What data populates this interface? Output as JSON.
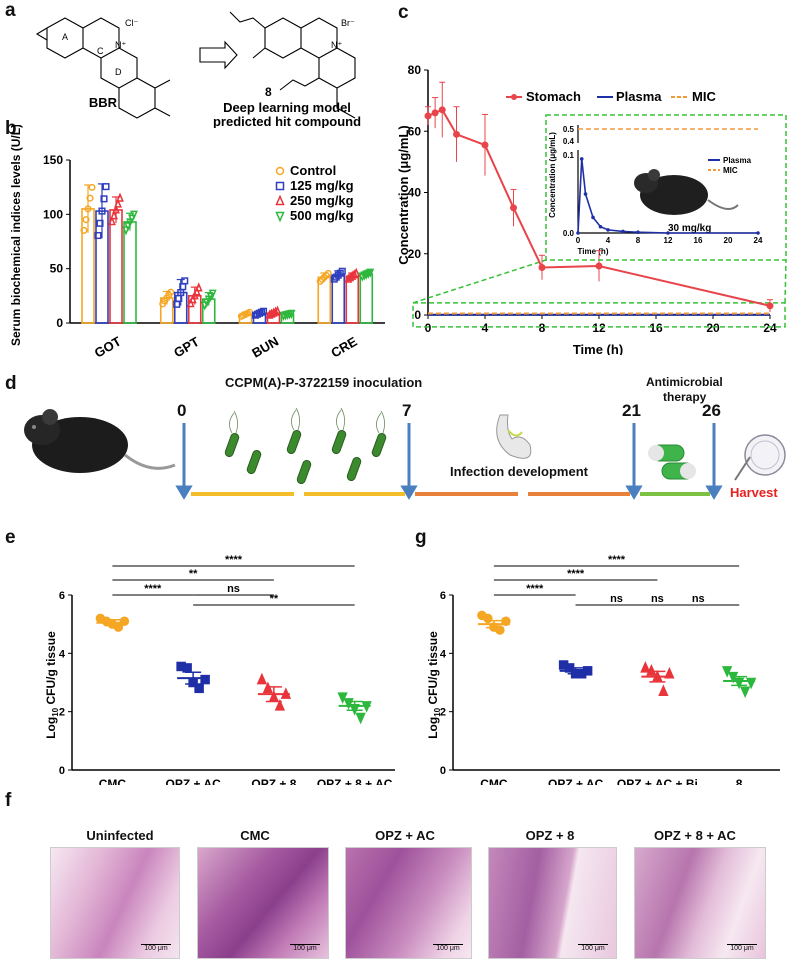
{
  "panel_letters": {
    "a": "a",
    "b": "b",
    "c": "c",
    "d": "d",
    "e": "e",
    "f": "f",
    "g": "g"
  },
  "panel_a": {
    "ring_labels": [
      "A",
      "C",
      "D"
    ],
    "counterion_bbr": "Cl⁻",
    "counterion_hit": "Br⁻",
    "nplus": "N⁺",
    "compound_number": "8",
    "bbr_label": "BBR",
    "hit_label_line1": "Deep learning model",
    "hit_label_line2": "predicted hit compound"
  },
  "panel_b": {
    "ylabel": "Serum biochemical indices levels (U/L)",
    "legend": [
      "Control",
      "125 mg/kg",
      "250 mg/kg",
      "500 mg/kg"
    ],
    "colors": [
      "#F5A623",
      "#2F3FBF",
      "#E8343A",
      "#2DB83D"
    ]
  },
  "panel_c": {
    "legend": [
      "Stomach",
      "Plasma",
      "MIC"
    ],
    "inset_legend": [
      "Plasma",
      "MIC"
    ],
    "inset_dose": "30 mg/kg",
    "inset_xlabel": "Time (h)",
    "inset_ylabel": "Concentration (μg/mL)"
  },
  "panel_d": {
    "inoculation": "CCPM(A)-P-3722159 inoculation",
    "days": [
      "0",
      "7",
      "21",
      "26"
    ],
    "infection": "Infection development",
    "therapy_line1": "Antimicrobial",
    "therapy_line2": "therapy",
    "harvest": "Harvest"
  },
  "panel_f": {
    "titles": [
      "Uninfected",
      "CMC",
      "OPZ + AC",
      "OPZ + 8",
      "OPZ + 8 + AC"
    ],
    "scale_label": "100 μm"
  },
  "chart_data": [
    {
      "id": "b",
      "type": "bar",
      "title": "",
      "ylabel": "Serum biochemical indices levels (U/L)",
      "xlabel": "",
      "categories": [
        "GOT",
        "GPT",
        "BUN",
        "CRE"
      ],
      "ylim": [
        0,
        150
      ],
      "yticks": [
        0,
        50,
        100,
        150
      ],
      "series": [
        {
          "name": "Control",
          "values": [
            105,
            23,
            8,
            42
          ],
          "err": [
            22,
            6,
            2,
            4
          ]
        },
        {
          "name": "125 mg/kg",
          "values": [
            103,
            28,
            9,
            44
          ],
          "err": [
            25,
            12,
            2,
            4
          ]
        },
        {
          "name": "250 mg/kg",
          "values": [
            104,
            25,
            9,
            43
          ],
          "err": [
            12,
            8,
            2,
            3
          ]
        },
        {
          "name": "500 mg/kg",
          "values": [
            93,
            22,
            8,
            45
          ],
          "err": [
            8,
            6,
            1,
            2
          ]
        }
      ]
    },
    {
      "id": "c",
      "type": "line",
      "title": "",
      "xlabel": "Time (h)",
      "ylabel": "Concentration (μg/mL)",
      "xlim": [
        0,
        24
      ],
      "ylim": [
        0,
        80
      ],
      "xticks": [
        0,
        4,
        8,
        12,
        16,
        20,
        24
      ],
      "yticks": [
        0,
        20,
        40,
        60,
        80
      ],
      "series": [
        {
          "name": "Stomach",
          "x": [
            0,
            0.5,
            1,
            2,
            4,
            6,
            8,
            12,
            24
          ],
          "y": [
            65,
            66,
            67,
            59,
            55.5,
            35,
            15.5,
            16,
            3
          ],
          "err": [
            3,
            5,
            9,
            9,
            10,
            6,
            4,
            5,
            2
          ]
        },
        {
          "name": "Plasma",
          "x": [
            0,
            0.5,
            1,
            2,
            4,
            6,
            8,
            12,
            24
          ],
          "y": [
            0.1,
            0.1,
            0.1,
            0.1,
            0.1,
            0.1,
            0.1,
            0.1,
            0.1
          ]
        },
        {
          "name": "MIC",
          "x": [
            0,
            24
          ],
          "y": [
            0.5,
            0.5
          ]
        }
      ],
      "inset": {
        "xlim": [
          0,
          24
        ],
        "xticks": [
          0,
          4,
          8,
          12,
          16,
          20,
          24
        ],
        "yticks_labels": [
          "0.0",
          "0.1",
          "0.4",
          "0.5"
        ],
        "series": [
          {
            "name": "Plasma",
            "x": [
              0,
              0.5,
              1,
              2,
              3,
              4,
              6,
              8,
              12,
              24
            ],
            "y": [
              0.0,
              0.095,
              0.05,
              0.02,
              0.008,
              0.004,
              0.002,
              0.001,
              0.0,
              0.0
            ]
          },
          {
            "name": "MIC",
            "x": [
              0,
              24
            ],
            "y": [
              0.5,
              0.5
            ]
          }
        ]
      }
    },
    {
      "id": "e",
      "type": "scatter",
      "ylabel": "Log10 CFU/g tissue",
      "categories": [
        "CMC",
        "OPZ + AC",
        "OPZ + 8",
        "OPZ + 8 + AC"
      ],
      "ylim": [
        0,
        6
      ],
      "yticks": [
        0,
        2,
        4,
        6
      ],
      "means": [
        5.05,
        3.15,
        2.6,
        2.2
      ],
      "sem": [
        0.1,
        0.2,
        0.25,
        0.15
      ],
      "points": [
        [
          5.2,
          5.1,
          5.0,
          4.9,
          5.1
        ],
        [
          3.55,
          3.5,
          3.0,
          2.8,
          3.1
        ],
        [
          3.1,
          2.8,
          2.5,
          2.2,
          2.6
        ],
        [
          2.5,
          2.3,
          2.1,
          1.8,
          2.2
        ]
      ],
      "colors": [
        "#F5A623",
        "#1F2FA6",
        "#E8343A",
        "#2DB83D"
      ],
      "brackets": [
        {
          "from": 0,
          "to": 3,
          "label": "****"
        },
        {
          "from": 0,
          "to": 2,
          "label": "**"
        },
        {
          "from": 0,
          "to": 1,
          "label": "****"
        },
        {
          "from": 1,
          "to": 2,
          "label": "ns"
        },
        {
          "from": 1,
          "to": 3,
          "label": "**"
        }
      ]
    },
    {
      "id": "g",
      "type": "scatter",
      "ylabel": "Log10 CFU/g tissue",
      "categories": [
        "CMC",
        "OPZ + AC",
        "OPZ + AC + Bi",
        "8"
      ],
      "ylim": [
        0,
        6
      ],
      "yticks": [
        0,
        2,
        4,
        6
      ],
      "means": [
        5.0,
        3.4,
        3.2,
        3.05
      ],
      "sem": [
        0.12,
        0.1,
        0.18,
        0.15
      ],
      "points": [
        [
          5.3,
          5.2,
          4.9,
          4.8,
          5.1
        ],
        [
          3.6,
          3.5,
          3.3,
          3.3,
          3.4
        ],
        [
          3.5,
          3.4,
          3.2,
          2.7,
          3.3
        ],
        [
          3.4,
          3.2,
          3.0,
          2.7,
          3.0
        ]
      ],
      "colors": [
        "#F5A623",
        "#1F2FA6",
        "#E8343A",
        "#2DB83D"
      ],
      "brackets": [
        {
          "from": 0,
          "to": 3,
          "label": "****"
        },
        {
          "from": 0,
          "to": 2,
          "label": "****"
        },
        {
          "from": 0,
          "to": 1,
          "label": "****"
        },
        {
          "from": 1,
          "to": 2,
          "label": "ns"
        },
        {
          "from": 1,
          "to": 3,
          "label": "ns"
        },
        {
          "from": 2,
          "to": 3,
          "label": "ns"
        }
      ]
    }
  ]
}
